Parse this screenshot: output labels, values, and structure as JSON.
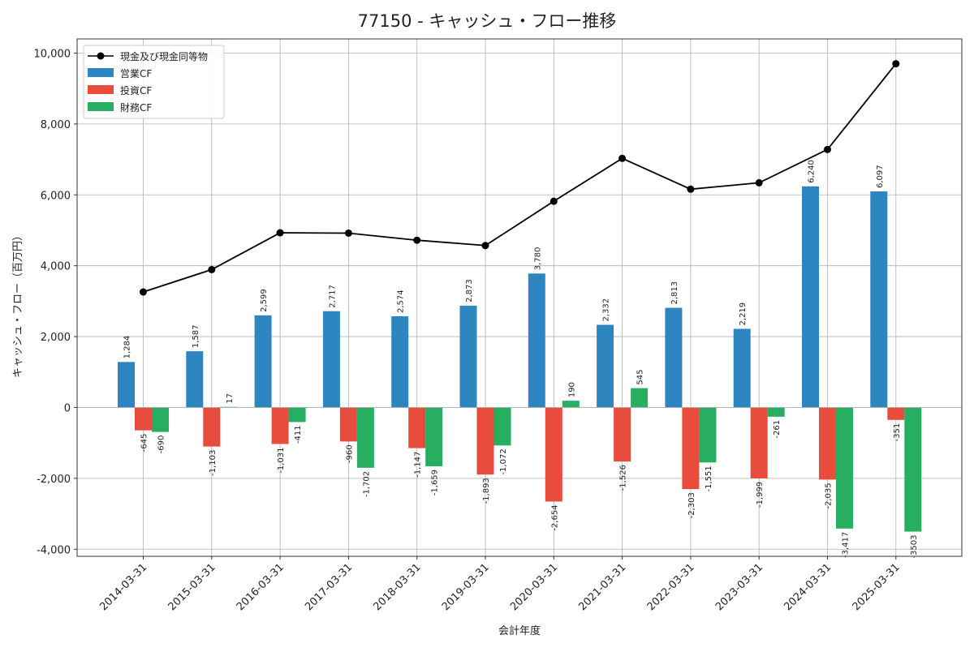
{
  "chart_data": {
    "type": "bar",
    "title": "77150 - キャッシュ・フロー推移",
    "xlabel": "会計年度",
    "ylabel": "キャッシュ・フロー（百万円）",
    "ylim": [
      -4200,
      10400
    ],
    "yticks": [
      -4000,
      -2000,
      0,
      2000,
      4000,
      6000,
      8000,
      10000
    ],
    "ytick_labels": [
      "-4,000",
      "-2,000",
      "0",
      "2,000",
      "4,000",
      "6,000",
      "8,000",
      "10,000"
    ],
    "grid": true,
    "legend_position": "top-left",
    "categories": [
      "2014-03-31",
      "2015-03-31",
      "2016-03-31",
      "2017-03-31",
      "2018-03-31",
      "2019-03-31",
      "2020-03-31",
      "2021-03-31",
      "2022-03-31",
      "2023-03-31",
      "2024-03-31",
      "2025-03-31"
    ],
    "series": [
      {
        "name": "営業CF",
        "kind": "bar",
        "color": "#2e86c1",
        "values": [
          1284,
          1587,
          2599,
          2717,
          2574,
          2873,
          3780,
          2332,
          2813,
          2219,
          6240,
          6097
        ],
        "labels": [
          "1,284",
          "1,587",
          "2,599",
          "2,717",
          "2,574",
          "2,873",
          "3,780",
          "2,332",
          "2,813",
          "2,219",
          "6,240",
          "6,097"
        ]
      },
      {
        "name": "投資CF",
        "kind": "bar",
        "color": "#e74c3c",
        "values": [
          -645,
          -1103,
          -1031,
          -960,
          -1147,
          -1893,
          -2654,
          -1526,
          -2303,
          -1999,
          -2035,
          -351
        ],
        "labels": [
          "-645",
          "-1,103",
          "-1,031",
          "-960",
          "-1,147",
          "-1,893",
          "-2,654",
          "-1,526",
          "-2,303",
          "-1,999",
          "-2,035",
          "-351"
        ]
      },
      {
        "name": "財務CF",
        "kind": "bar",
        "color": "#27ae60",
        "values": [
          -690,
          17,
          -411,
          -1702,
          -1659,
          -1072,
          190,
          545,
          -1551,
          -261,
          -3417,
          -3503
        ],
        "labels": [
          "-690",
          "17",
          "-411",
          "-1,702",
          "-1,659",
          "-1,072",
          "190",
          "545",
          "-1,551",
          "-261",
          "-3,417",
          "-3503"
        ]
      },
      {
        "name": "現金及び現金同等物",
        "kind": "line",
        "color": "#000000",
        "values": [
          3260,
          3890,
          4930,
          4920,
          4720,
          4570,
          5820,
          7030,
          6160,
          6340,
          7280,
          9700
        ]
      }
    ]
  }
}
